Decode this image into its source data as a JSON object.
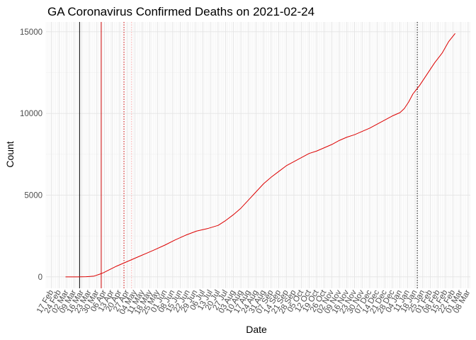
{
  "chart_data": {
    "type": "line",
    "title": "GA Coronavirus Confirmed Deaths on 2021-02-24",
    "xlabel": "Date",
    "ylabel": "Count",
    "xlim": [
      "2020-02-12",
      "2021-03-10"
    ],
    "ylim": [
      -700,
      15600
    ],
    "grid": true,
    "y_ticks": [
      0,
      5000,
      10000,
      15000
    ],
    "x_ticks": [
      {
        "date": "2020-02-17",
        "label": "17 Feb"
      },
      {
        "date": "2020-02-24",
        "label": "24 Feb"
      },
      {
        "date": "2020-03-02",
        "label": "02 Mar"
      },
      {
        "date": "2020-03-09",
        "label": "09 Mar"
      },
      {
        "date": "2020-03-16",
        "label": "16 Mar"
      },
      {
        "date": "2020-03-23",
        "label": "23 Mar"
      },
      {
        "date": "2020-03-30",
        "label": "30 Mar"
      },
      {
        "date": "2020-04-06",
        "label": "06 Apr"
      },
      {
        "date": "2020-04-13",
        "label": "13 Apr"
      },
      {
        "date": "2020-04-20",
        "label": "20 Apr"
      },
      {
        "date": "2020-04-27",
        "label": "27 Apr"
      },
      {
        "date": "2020-05-04",
        "label": "04 May"
      },
      {
        "date": "2020-05-11",
        "label": "11 May"
      },
      {
        "date": "2020-05-18",
        "label": "18 May"
      },
      {
        "date": "2020-05-25",
        "label": "25 May"
      },
      {
        "date": "2020-06-01",
        "label": "01 Jun"
      },
      {
        "date": "2020-06-08",
        "label": "08 Jun"
      },
      {
        "date": "2020-06-15",
        "label": "15 Jun"
      },
      {
        "date": "2020-06-22",
        "label": "22 Jun"
      },
      {
        "date": "2020-06-29",
        "label": "29 Jun"
      },
      {
        "date": "2020-07-06",
        "label": "06 Jul"
      },
      {
        "date": "2020-07-13",
        "label": "13 Jul"
      },
      {
        "date": "2020-07-20",
        "label": "20 Jul"
      },
      {
        "date": "2020-07-27",
        "label": "27 Jul"
      },
      {
        "date": "2020-08-03",
        "label": "03 Aug"
      },
      {
        "date": "2020-08-10",
        "label": "10 Aug"
      },
      {
        "date": "2020-08-17",
        "label": "17 Aug"
      },
      {
        "date": "2020-08-24",
        "label": "24 Aug"
      },
      {
        "date": "2020-08-31",
        "label": "31 Aug"
      },
      {
        "date": "2020-09-07",
        "label": "07 Sep"
      },
      {
        "date": "2020-09-14",
        "label": "14 Sep"
      },
      {
        "date": "2020-09-21",
        "label": "21 Sep"
      },
      {
        "date": "2020-09-28",
        "label": "28 Sep"
      },
      {
        "date": "2020-10-05",
        "label": "05 Oct"
      },
      {
        "date": "2020-10-12",
        "label": "12 Oct"
      },
      {
        "date": "2020-10-19",
        "label": "19 Oct"
      },
      {
        "date": "2020-10-26",
        "label": "26 Oct"
      },
      {
        "date": "2020-11-02",
        "label": "02 Nov"
      },
      {
        "date": "2020-11-09",
        "label": "09 Nov"
      },
      {
        "date": "2020-11-16",
        "label": "16 Nov"
      },
      {
        "date": "2020-11-23",
        "label": "23 Nov"
      },
      {
        "date": "2020-11-30",
        "label": "30 Nov"
      },
      {
        "date": "2020-12-07",
        "label": "07 Dec"
      },
      {
        "date": "2020-12-14",
        "label": "14 Dec"
      },
      {
        "date": "2020-12-21",
        "label": "21 Dec"
      },
      {
        "date": "2020-12-28",
        "label": "28 Dec"
      },
      {
        "date": "2021-01-04",
        "label": "04 Jan"
      },
      {
        "date": "2021-01-11",
        "label": "11 Jan"
      },
      {
        "date": "2021-01-18",
        "label": "18 Jan"
      },
      {
        "date": "2021-01-25",
        "label": "25 Jan"
      },
      {
        "date": "2021-02-01",
        "label": "01 Feb"
      },
      {
        "date": "2021-02-08",
        "label": "08 Feb"
      },
      {
        "date": "2021-02-15",
        "label": "15 Feb"
      },
      {
        "date": "2021-02-22",
        "label": "22 Feb"
      },
      {
        "date": "2021-03-01",
        "label": "01 Mar"
      },
      {
        "date": "2021-03-08",
        "label": "08 Mar"
      }
    ],
    "vlines": [
      {
        "date": "2020-03-14",
        "color": "#000000",
        "style": "solid"
      },
      {
        "date": "2020-04-03",
        "color": "#cc0000",
        "style": "solid"
      },
      {
        "date": "2020-04-24",
        "color": "#cc0000",
        "style": "dotted"
      },
      {
        "date": "2020-05-01",
        "color": "#ffaaaa",
        "style": "dotted"
      },
      {
        "date": "2021-01-20",
        "color": "#000000",
        "style": "dotted"
      }
    ],
    "series": [
      {
        "color": "#dd0000",
        "points": [
          [
            "2020-03-01",
            0
          ],
          [
            "2020-03-12",
            1
          ],
          [
            "2020-03-20",
            10
          ],
          [
            "2020-03-27",
            40
          ],
          [
            "2020-04-01",
            150
          ],
          [
            "2020-04-05",
            250
          ],
          [
            "2020-04-10",
            420
          ],
          [
            "2020-04-17",
            650
          ],
          [
            "2020-04-24",
            850
          ],
          [
            "2020-05-01",
            1050
          ],
          [
            "2020-05-08",
            1250
          ],
          [
            "2020-05-15",
            1450
          ],
          [
            "2020-05-22",
            1650
          ],
          [
            "2020-06-01",
            1950
          ],
          [
            "2020-06-10",
            2250
          ],
          [
            "2020-06-20",
            2550
          ],
          [
            "2020-06-30",
            2800
          ],
          [
            "2020-07-10",
            2950
          ],
          [
            "2020-07-20",
            3150
          ],
          [
            "2020-07-27",
            3450
          ],
          [
            "2020-08-03",
            3800
          ],
          [
            "2020-08-10",
            4200
          ],
          [
            "2020-08-17",
            4700
          ],
          [
            "2020-08-24",
            5200
          ],
          [
            "2020-08-31",
            5700
          ],
          [
            "2020-09-07",
            6100
          ],
          [
            "2020-09-14",
            6450
          ],
          [
            "2020-09-21",
            6800
          ],
          [
            "2020-09-28",
            7050
          ],
          [
            "2020-10-05",
            7300
          ],
          [
            "2020-10-12",
            7550
          ],
          [
            "2020-10-19",
            7700
          ],
          [
            "2020-10-26",
            7900
          ],
          [
            "2020-11-02",
            8100
          ],
          [
            "2020-11-09",
            8350
          ],
          [
            "2020-11-16",
            8550
          ],
          [
            "2020-11-23",
            8700
          ],
          [
            "2020-11-30",
            8900
          ],
          [
            "2020-12-07",
            9100
          ],
          [
            "2020-12-14",
            9350
          ],
          [
            "2020-12-21",
            9600
          ],
          [
            "2020-12-28",
            9850
          ],
          [
            "2021-01-04",
            10050
          ],
          [
            "2021-01-08",
            10300
          ],
          [
            "2021-01-12",
            10700
          ],
          [
            "2021-01-16",
            11200
          ],
          [
            "2021-01-22",
            11700
          ],
          [
            "2021-01-29",
            12400
          ],
          [
            "2021-02-05",
            13100
          ],
          [
            "2021-02-12",
            13700
          ],
          [
            "2021-02-18",
            14400
          ],
          [
            "2021-02-24",
            14900
          ]
        ]
      }
    ]
  }
}
